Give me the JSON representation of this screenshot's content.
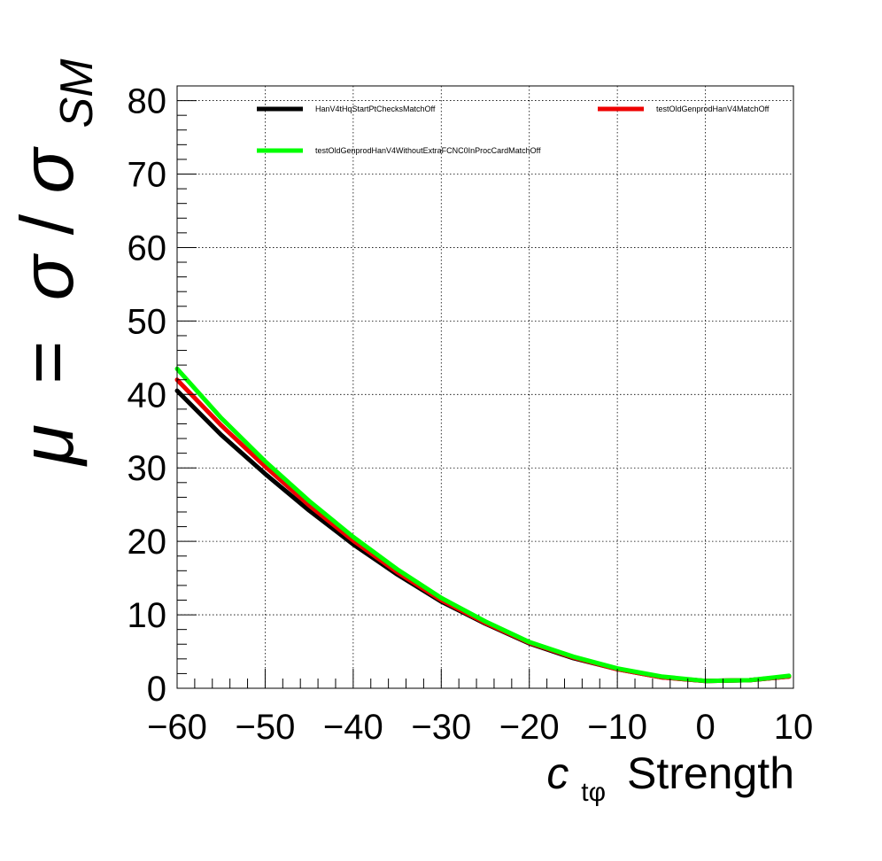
{
  "chart_data": {
    "type": "line",
    "xlabel": {
      "symbol": "c",
      "subscript": "tφ",
      "suffix": "Strength"
    },
    "ylabel": {
      "mu": "μ",
      "equals": "=",
      "sigma": "σ",
      "slash": "/",
      "sub": "SM"
    },
    "xlim": [
      -60,
      10
    ],
    "ylim": [
      0,
      82
    ],
    "x_ticks": [
      -60,
      -50,
      -40,
      -30,
      -20,
      -10,
      0,
      10
    ],
    "x_tick_labels": [
      "−60",
      "−50",
      "−40",
      "−30",
      "−20",
      "−10",
      "0",
      "10"
    ],
    "y_ticks": [
      0,
      10,
      20,
      30,
      40,
      50,
      60,
      70,
      80
    ],
    "y_tick_labels": [
      "0",
      "10",
      "20",
      "30",
      "40",
      "50",
      "60",
      "70",
      "80"
    ],
    "grid": true,
    "legend_position": "top",
    "series": [
      {
        "name": "HanV4tHqStartPtChecksMatchOff",
        "color": "#000000",
        "x": [
          -60,
          -55,
          -50,
          -45,
          -40,
          -35,
          -30,
          -25,
          -20,
          -15,
          -10,
          -5,
          0,
          5,
          9.5
        ],
        "y": [
          40.5,
          34.5,
          29.2,
          24.2,
          19.6,
          15.5,
          11.8,
          8.8,
          6.1,
          4.1,
          2.6,
          1.5,
          1.0,
          1.1,
          1.6
        ]
      },
      {
        "name": "testOldGenprodHanV4MatchOff",
        "color": "#ee0000",
        "x": [
          -60,
          -55,
          -50,
          -45,
          -40,
          -35,
          -30,
          -25,
          -20,
          -15,
          -10,
          -5,
          0,
          5,
          9.5
        ],
        "y": [
          42.0,
          35.8,
          30.2,
          24.9,
          20.1,
          15.8,
          12.0,
          8.9,
          6.2,
          4.2,
          2.6,
          1.5,
          1.0,
          1.1,
          1.6
        ]
      },
      {
        "name": "testOldGenprodHanV4WithoutExtraFCNC0InProcCardMatchOff",
        "color": "#00ff00",
        "x": [
          -60,
          -55,
          -50,
          -45,
          -40,
          -35,
          -30,
          -25,
          -20,
          -15,
          -10,
          -5,
          0,
          5,
          9.5
        ],
        "y": [
          43.5,
          36.8,
          30.9,
          25.5,
          20.6,
          16.2,
          12.3,
          9.1,
          6.3,
          4.3,
          2.7,
          1.6,
          1.0,
          1.1,
          1.7
        ]
      }
    ]
  }
}
